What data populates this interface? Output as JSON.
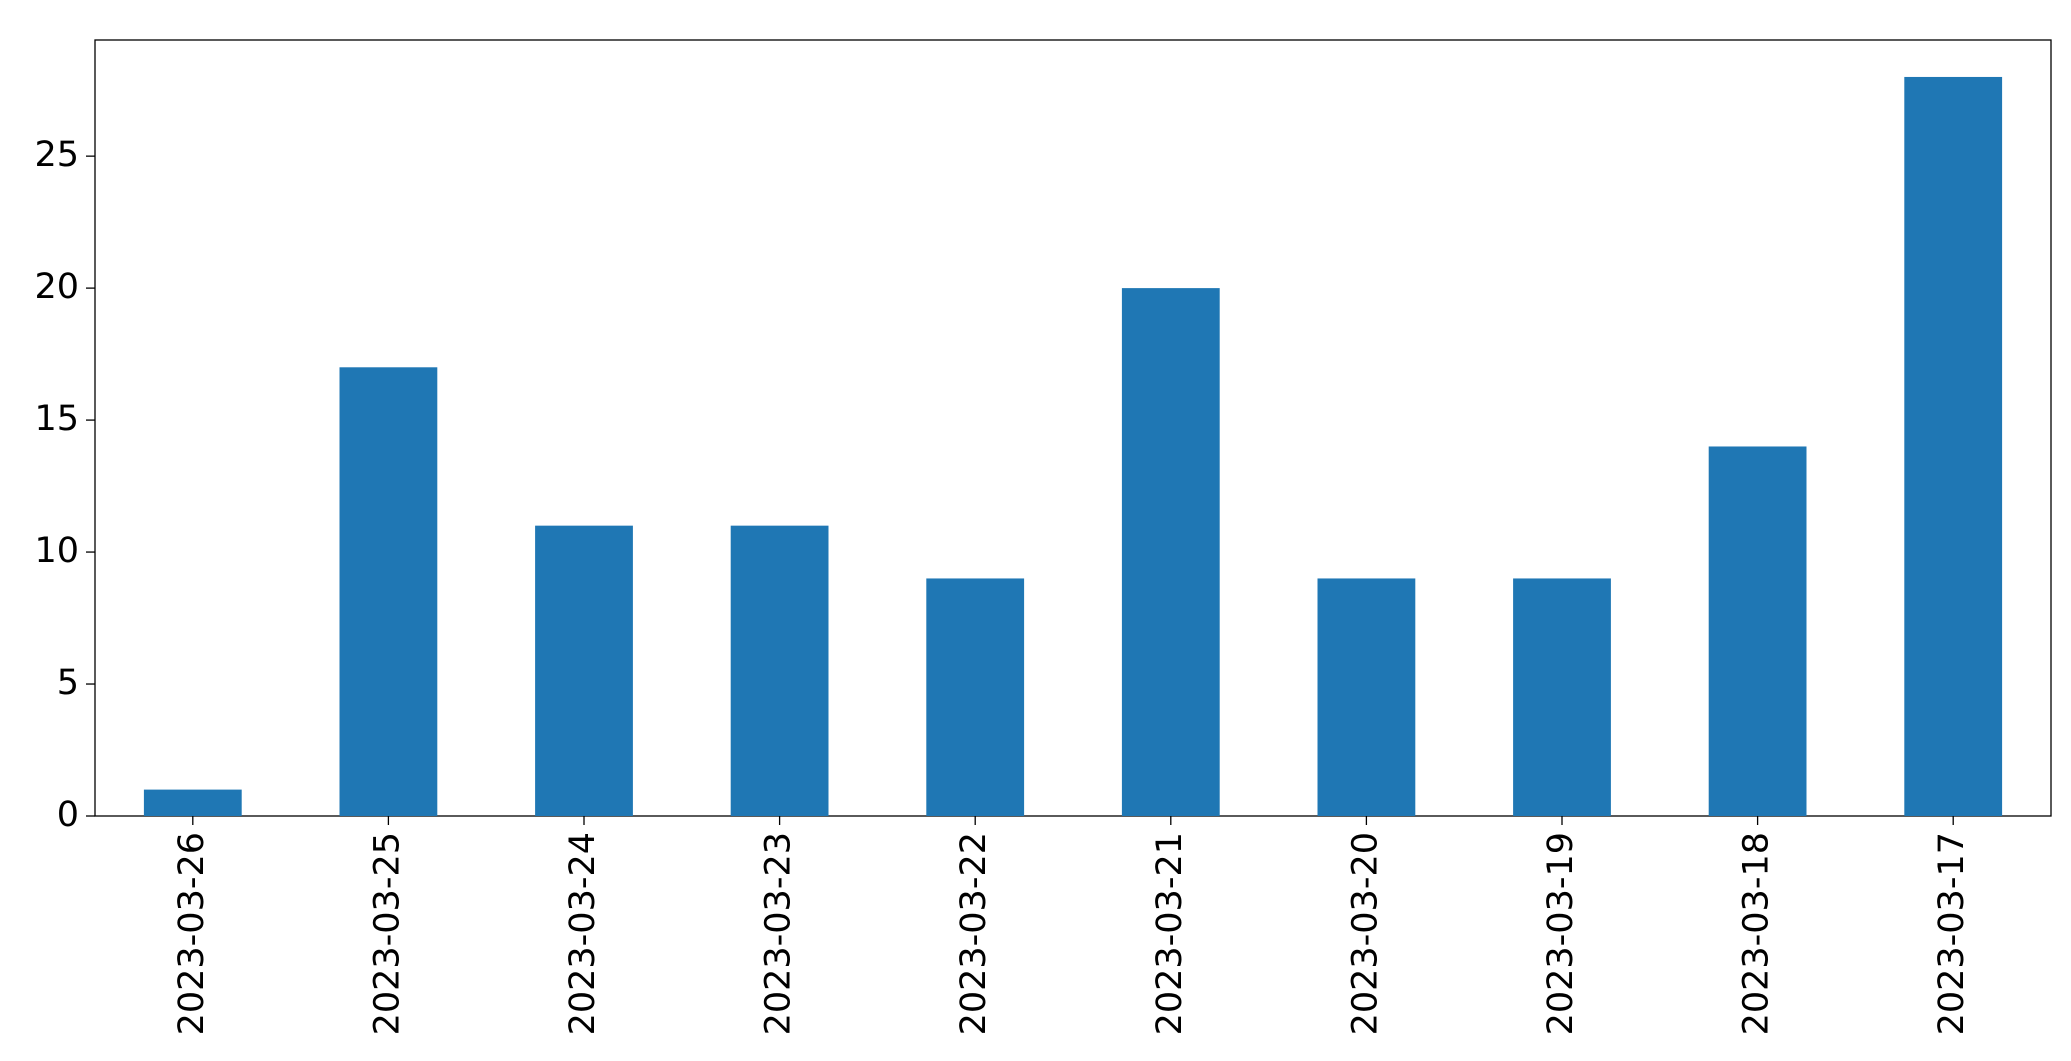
{
  "chart_data": {
    "type": "bar",
    "categories": [
      "2023-03-26",
      "2023-03-25",
      "2023-03-24",
      "2023-03-23",
      "2023-03-22",
      "2023-03-21",
      "2023-03-20",
      "2023-03-19",
      "2023-03-18",
      "2023-03-17"
    ],
    "values": [
      1,
      17,
      11,
      11,
      9,
      20,
      9,
      9,
      14,
      28
    ],
    "color": "#1f77b4",
    "ylim": [
      0,
      29.4
    ],
    "yticks": [
      0,
      5,
      10,
      15,
      20,
      25
    ],
    "grid": false
  }
}
